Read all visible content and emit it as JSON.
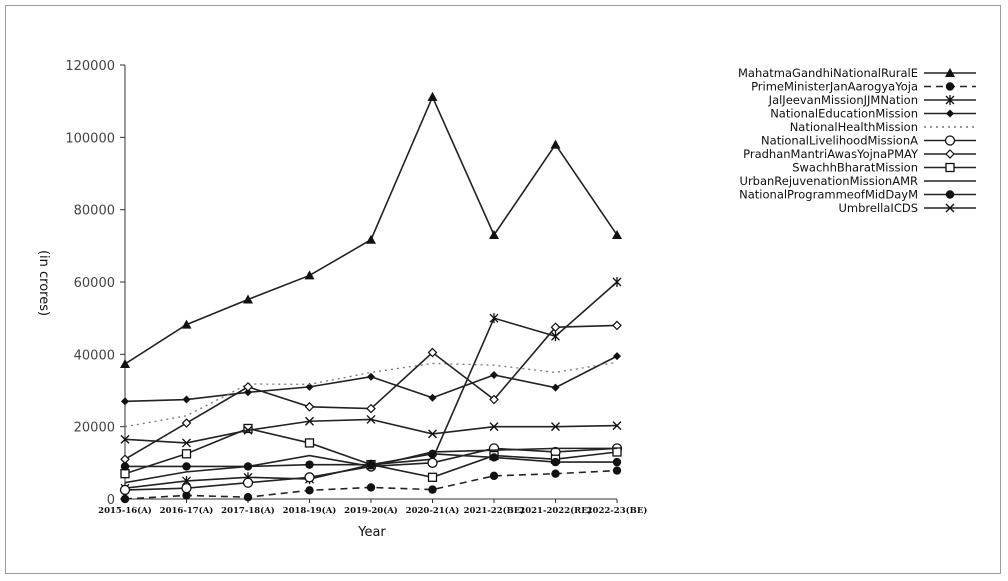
{
  "chart_data": {
    "type": "line",
    "title": "",
    "xlabel": "Year",
    "ylabel": "(in crores)",
    "categories": [
      "2015-16(A)",
      "2016-17(A)",
      "2017-18(A)",
      "2018-19(A)",
      "2019-20(A)",
      "2020-21(A)",
      "2021-22(BE)",
      "2021-2022(RE)",
      "2022-23(BE)"
    ],
    "ylim": [
      0,
      120000
    ],
    "yticks": [
      "0",
      "20000",
      "40000",
      "60000",
      "80000",
      "100000",
      "120000"
    ],
    "legend_position": "right",
    "grid": false,
    "series": [
      {
        "name": "MahatmaGandhiNationalRuralE",
        "marker": "triangle",
        "dash": "solid",
        "values": [
          37341,
          48215,
          55166,
          61815,
          71687,
          111170,
          73000,
          98000,
          73000
        ]
      },
      {
        "name": "PrimeMinisterJanAarogyaYoja",
        "marker": "dot",
        "dash": "dashed",
        "values": [
          0,
          1000,
          500,
          2400,
          3200,
          2600,
          6400,
          7000,
          7857
        ]
      },
      {
        "name": "JalJeevanMissionJJMNation",
        "marker": "star",
        "dash": "solid",
        "values": [
          3000,
          5000,
          6000,
          5500,
          9500,
          11000,
          50000,
          45000,
          60000
        ]
      },
      {
        "name": "NationalEducationMission",
        "marker": "diamond",
        "dash": "solid",
        "values": [
          27000,
          27500,
          29500,
          31000,
          33800,
          28000,
          34300,
          30800,
          39500
        ]
      },
      {
        "name": "NationalHealthMission",
        "marker": "none",
        "dash": "dotted",
        "values": [
          20000,
          23000,
          31800,
          31700,
          35000,
          37500,
          37000,
          35000,
          37800
        ]
      },
      {
        "name": "NationalLivelihoodMissionA",
        "marker": "circle",
        "dash": "solid",
        "values": [
          2500,
          3000,
          4500,
          6000,
          9000,
          10000,
          14000,
          13000,
          14000
        ]
      },
      {
        "name": "PradhanMantriAwasYojnaPMAY",
        "marker": "diamond-open",
        "dash": "solid",
        "values": [
          11000,
          21000,
          31000,
          25500,
          25000,
          40500,
          27500,
          47500,
          48000
        ]
      },
      {
        "name": "SwachhBharatMission",
        "marker": "square",
        "dash": "solid",
        "values": [
          7000,
          12500,
          19500,
          15500,
          9500,
          6000,
          12000,
          11000,
          13000
        ]
      },
      {
        "name": "UrbanRejuvenationMissionAMR",
        "marker": "none",
        "dash": "solid",
        "values": [
          4500,
          7500,
          9000,
          12000,
          9000,
          13000,
          13500,
          14000,
          14000
        ]
      },
      {
        "name": "NationalProgrammeofMidDayM",
        "marker": "dot",
        "dash": "solid",
        "values": [
          9000,
          9000,
          9000,
          9500,
          9500,
          12500,
          11500,
          10200,
          10200
        ]
      },
      {
        "name": "UmbrellaICDS",
        "marker": "x",
        "dash": "solid",
        "values": [
          16500,
          15500,
          19000,
          21500,
          22000,
          18000,
          20000,
          20000,
          20300
        ]
      }
    ]
  }
}
